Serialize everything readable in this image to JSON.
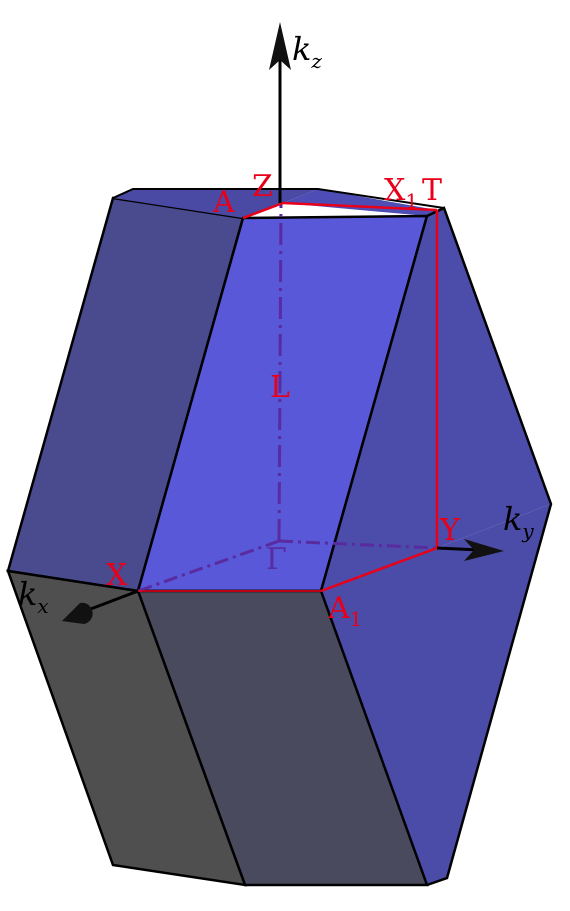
{
  "axes": {
    "kx": {
      "base": "k",
      "sub": "x"
    },
    "ky": {
      "base": "k",
      "sub": "y"
    },
    "kz": {
      "base": "k",
      "sub": "z"
    }
  },
  "points": {
    "gamma": "Γ",
    "x": "X",
    "y": "Y",
    "z": "Z",
    "a": "A",
    "t": "T",
    "l": "L",
    "x1": {
      "base": "X",
      "sub": "1"
    },
    "a1": {
      "base": "A",
      "sub": "1"
    }
  },
  "colors": {
    "face_front_light": "#5b5bd9",
    "face_side": "#4b4ba8",
    "face_dark_top": "#474786",
    "face_bottom_dark": "#4a4a5e",
    "face_bottom_grey": "#4f4f4f",
    "path_red": "#e8001a",
    "internal_purple": "#5a2aa0",
    "edge": "#000000"
  }
}
